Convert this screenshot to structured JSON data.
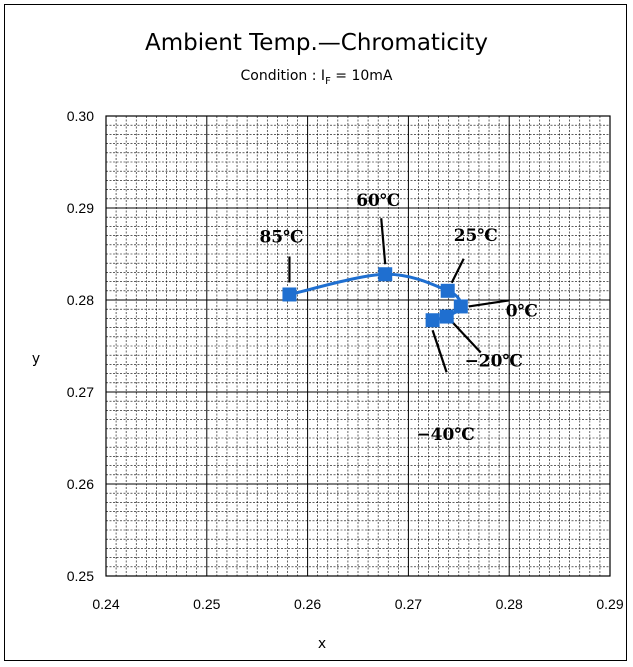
{
  "chart_data": {
    "type": "line",
    "title": "Ambient Temp.—Chromaticity",
    "subtitle": {
      "prefix": "Condition : I",
      "subscript": "F",
      "suffix": " = 10mA"
    },
    "xlabel": "x",
    "ylabel": "y",
    "xlim": [
      0.24,
      0.29
    ],
    "ylim": [
      0.25,
      0.3
    ],
    "x_ticks": [
      "0.24",
      "0.25",
      "0.26",
      "0.27",
      "0.28",
      "0.29"
    ],
    "y_ticks": [
      "0.25",
      "0.26",
      "0.27",
      "0.28",
      "0.29",
      "0.30"
    ],
    "grid": true,
    "series": [
      {
        "color": "#1f6fd0",
        "points": [
          {
            "x": 0.2582,
            "y": 0.2806,
            "label": "85℃"
          },
          {
            "x": 0.2677,
            "y": 0.2828,
            "label": "60℃"
          },
          {
            "x": 0.2739,
            "y": 0.281,
            "label": "25℃"
          },
          {
            "x": 0.2752,
            "y": 0.2793,
            "label": "0℃"
          },
          {
            "x": 0.2738,
            "y": 0.2782,
            "label": "−20℃"
          },
          {
            "x": 0.2724,
            "y": 0.2778,
            "label": "−40℃"
          }
        ]
      }
    ]
  }
}
